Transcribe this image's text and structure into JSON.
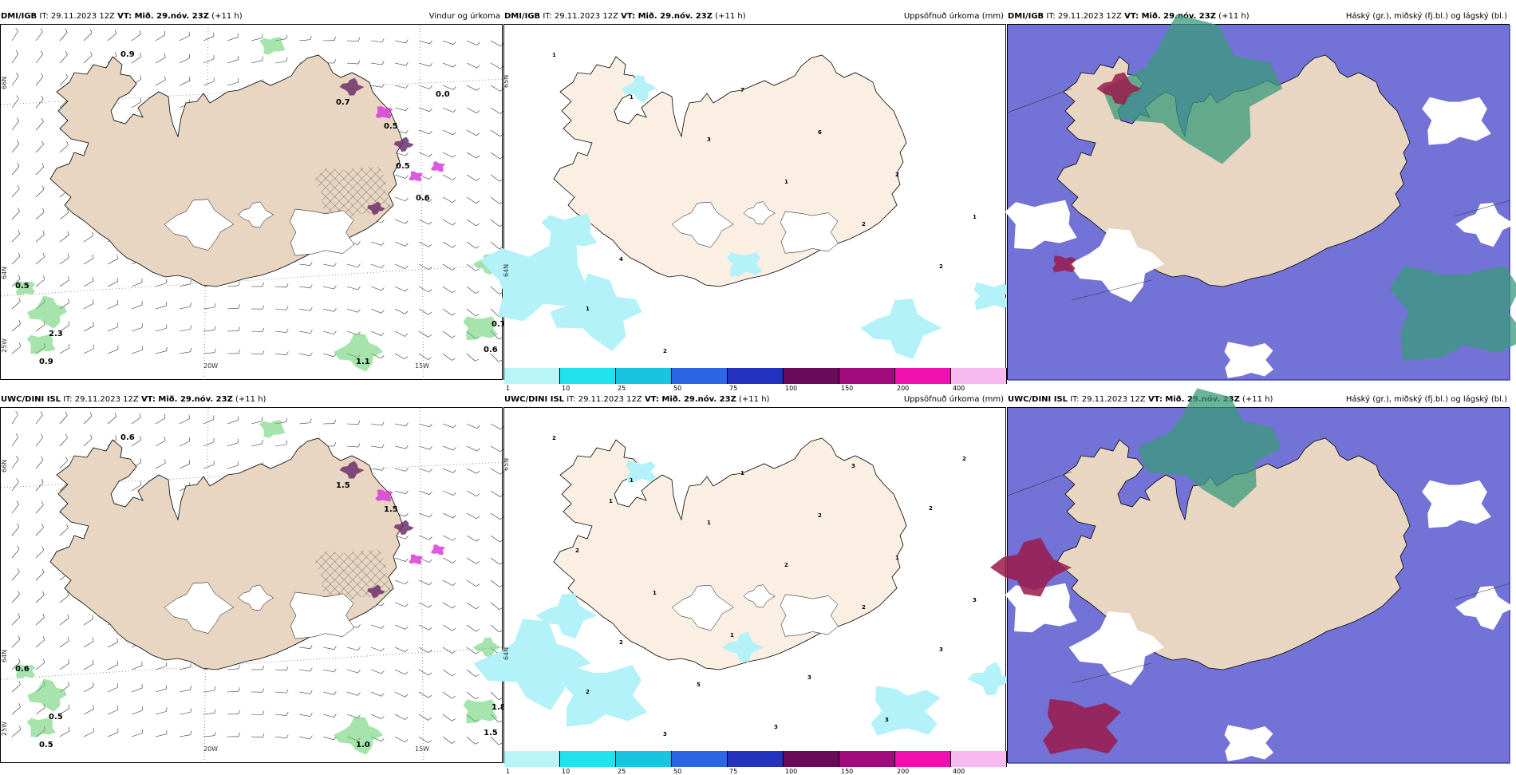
{
  "panels": [
    {
      "model": "DMI/IGB",
      "it_label": "IT:",
      "it_value": "29.11.2023 12Z",
      "vt_label": "VT: Mið. 29.nóv. 23Z",
      "lead": "(+11 h)",
      "title": "Vindur og úrkoma",
      "type": "wind",
      "axis_labels": {
        "lon1": "20W",
        "lon2": "15W",
        "lat1": "66N",
        "lat2": "64N",
        "lon3": "25W"
      },
      "values": [
        "0.9",
        "0.5",
        "2.3",
        "0.9",
        "1.1",
        "0.7",
        "0.6",
        "0.7",
        "0.5",
        "0.5",
        "0.6",
        "0.0"
      ]
    },
    {
      "model": "DMI/IGB",
      "it_label": "IT:",
      "it_value": "29.11.2023 12Z",
      "vt_label": "VT: Mið. 29.nóv. 23Z",
      "lead": "(+11 h)",
      "title": "Uppsöfnuð úrkoma (mm)",
      "type": "precip",
      "axis_labels": {
        "lat1": "65N",
        "lat2": "64N"
      },
      "values": [
        "1",
        "1",
        "3",
        "1",
        "2",
        "2",
        "1",
        "2",
        "7",
        "6",
        "2",
        "1",
        "4"
      ]
    },
    {
      "model": "DMI/IGB",
      "it_label": "IT:",
      "it_value": "29.11.2023 12Z",
      "vt_label": "VT: Mið. 29.nóv. 23Z",
      "lead": "(+11 h)",
      "title": "Háský (gr.), miðský (fj.bl.) og lágský (bl.)",
      "type": "cloud"
    },
    {
      "model": "UWC/DINI ISL",
      "it_label": "IT:",
      "it_value": "29.11.2023 12Z",
      "vt_label": "VT: Mið. 29.nóv. 23Z",
      "lead": "(+11 h)",
      "title": "",
      "type": "wind",
      "axis_labels": {
        "lon1": "20W",
        "lon2": "15W",
        "lat1": "66N",
        "lat2": "64N",
        "lon3": "25W"
      },
      "values": [
        "0.6",
        "0.6",
        "0.5",
        "0.5",
        "1.0",
        "1.8",
        "1.5",
        "1.5",
        "1.5"
      ]
    },
    {
      "model": "UWC/DINI ISL",
      "it_label": "IT:",
      "it_value": "29.11.2023 12Z",
      "vt_label": "VT: Mið. 29.nóv. 23Z",
      "lead": "(+11 h)",
      "title": "Uppsöfnuð úrkoma (mm)",
      "type": "precip",
      "axis_labels": {
        "lat1": "65N",
        "lat2": "64N"
      },
      "values": [
        "2",
        "1",
        "1",
        "2",
        "2",
        "3",
        "2",
        "3",
        "1",
        "2",
        "1",
        "3",
        "2",
        "5",
        "3",
        "3",
        "2",
        "2",
        "1",
        "1",
        "3",
        "3",
        "2",
        "1"
      ]
    },
    {
      "model": "UWC/DINI ISL",
      "it_label": "IT:",
      "it_value": "29.11.2023 12Z",
      "vt_label": "VT: Mið. 29.nóv. 23Z",
      "lead": "(+11 h)",
      "title": "Háský (gr.), miðský (fj.bl.) og lágský (bl.)",
      "type": "cloud"
    }
  ],
  "colorbar": {
    "colors": [
      "#b8f4f8",
      "#22e2ee",
      "#18c4e0",
      "#2c66e6",
      "#2432c0",
      "#6a0a5a",
      "#a00a7a",
      "#f010b0",
      "#f8b8f0"
    ],
    "ticks": [
      "1",
      "10",
      "25",
      "50",
      "75",
      "100",
      "150",
      "200",
      "400"
    ]
  },
  "colors": {
    "land": "#e8d5c2",
    "land_light": "#fbefe3",
    "precip_cyan": "#b3f2f8",
    "green": "#5ccc6a",
    "purple": "#6c2f6c",
    "magenta": "#d83cd8",
    "cloud_blue": "#5a5ad0",
    "cloud_teal": "#3a9a7a",
    "cloud_red": "#9a1a4a"
  }
}
